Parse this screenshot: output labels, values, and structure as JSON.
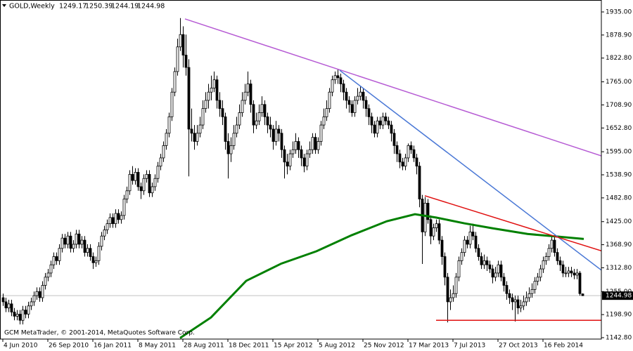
{
  "chart_data": {
    "type": "candlestick",
    "title": "GOLD,Weekly",
    "footer": "GCM MetaTrader, © 2001-2014, MetaQuotes Software Corp.",
    "bull_color": "#ffffff",
    "bear_color": "#000000",
    "outline_color": "#000000",
    "xlim": [
      -1,
      212.75
    ],
    "xticks": [
      {
        "value": 0,
        "label": "4 Jun 2010"
      },
      {
        "value": 16,
        "label": "26 Sep 2010"
      },
      {
        "value": 32,
        "label": "16 Jan 2011"
      },
      {
        "value": 48,
        "label": "8 May 2011"
      },
      {
        "value": 64,
        "label": "28 Aug 2011"
      },
      {
        "value": 80,
        "label": "18 Dec 2011"
      },
      {
        "value": 96,
        "label": "15 Apr 2012"
      },
      {
        "value": 112,
        "label": "5 Aug 2012"
      },
      {
        "value": 128,
        "label": "25 Nov 2012"
      },
      {
        "value": 144,
        "label": "17 Mar 2013"
      },
      {
        "value": 160,
        "label": "7 Jul 2013"
      },
      {
        "value": 176,
        "label": "27 Oct 2013"
      },
      {
        "value": 192,
        "label": "16 Feb 2014"
      }
    ],
    "ylim": [
      1139.4,
      1955.5
    ],
    "yticks": [
      {
        "value": 1935,
        "label": "1935.00"
      },
      {
        "value": 1878.9,
        "label": "1878.90"
      },
      {
        "value": 1822.8,
        "label": "1822.80"
      },
      {
        "value": 1765,
        "label": "1765.00"
      },
      {
        "value": 1708.9,
        "label": "1708.90"
      },
      {
        "value": 1652.8,
        "label": "1652.80"
      },
      {
        "value": 1595,
        "label": "1595.00"
      },
      {
        "value": 1538.9,
        "label": "1538.90"
      },
      {
        "value": 1482.8,
        "label": "1482.80"
      },
      {
        "value": 1425,
        "label": "1425.00"
      },
      {
        "value": 1368.9,
        "label": "1368.90"
      },
      {
        "value": 1312.8,
        "label": "1312.80"
      },
      {
        "value": 1255,
        "label": "1255.00"
      },
      {
        "value": 1198.9,
        "label": "1198.90"
      },
      {
        "value": 1142.8,
        "label": "1142.80"
      }
    ],
    "candles": [
      [
        1240,
        1250,
        1220,
        1230
      ],
      [
        1230,
        1240,
        1205,
        1215
      ],
      [
        1215,
        1235,
        1205,
        1225
      ],
      [
        1225,
        1235,
        1195,
        1205
      ],
      [
        1205,
        1215,
        1185,
        1195
      ],
      [
        1195,
        1210,
        1185,
        1200
      ],
      [
        1200,
        1210,
        1175,
        1185
      ],
      [
        1185,
        1220,
        1175,
        1210
      ],
      [
        1210,
        1220,
        1190,
        1200
      ],
      [
        1200,
        1230,
        1190,
        1220
      ],
      [
        1220,
        1240,
        1210,
        1230
      ],
      [
        1230,
        1255,
        1220,
        1245
      ],
      [
        1245,
        1265,
        1235,
        1255
      ],
      [
        1255,
        1265,
        1230,
        1240
      ],
      [
        1240,
        1280,
        1230,
        1270
      ],
      [
        1270,
        1300,
        1260,
        1290
      ],
      [
        1290,
        1310,
        1280,
        1300
      ],
      [
        1300,
        1330,
        1290,
        1320
      ],
      [
        1320,
        1350,
        1310,
        1340
      ],
      [
        1340,
        1350,
        1320,
        1330
      ],
      [
        1330,
        1370,
        1320,
        1360
      ],
      [
        1360,
        1395,
        1350,
        1385
      ],
      [
        1385,
        1395,
        1360,
        1370
      ],
      [
        1370,
        1400,
        1360,
        1390
      ],
      [
        1390,
        1400,
        1350,
        1360
      ],
      [
        1360,
        1380,
        1350,
        1370
      ],
      [
        1370,
        1405,
        1360,
        1395
      ],
      [
        1395,
        1405,
        1360,
        1370
      ],
      [
        1370,
        1390,
        1360,
        1380
      ],
      [
        1380,
        1390,
        1340,
        1350
      ],
      [
        1350,
        1370,
        1340,
        1360
      ],
      [
        1360,
        1370,
        1330,
        1340
      ],
      [
        1340,
        1350,
        1310,
        1325
      ],
      [
        1325,
        1340,
        1315,
        1330
      ],
      [
        1330,
        1375,
        1320,
        1365
      ],
      [
        1365,
        1400,
        1355,
        1390
      ],
      [
        1390,
        1415,
        1380,
        1405
      ],
      [
        1405,
        1430,
        1395,
        1420
      ],
      [
        1420,
        1445,
        1410,
        1435
      ],
      [
        1435,
        1445,
        1410,
        1420
      ],
      [
        1420,
        1455,
        1410,
        1445
      ],
      [
        1445,
        1455,
        1420,
        1430
      ],
      [
        1430,
        1450,
        1420,
        1440
      ],
      [
        1440,
        1490,
        1430,
        1480
      ],
      [
        1480,
        1510,
        1470,
        1500
      ],
      [
        1500,
        1550,
        1490,
        1540
      ],
      [
        1540,
        1560,
        1515,
        1525
      ],
      [
        1525,
        1555,
        1515,
        1545
      ],
      [
        1545,
        1555,
        1500,
        1510
      ],
      [
        1510,
        1520,
        1480,
        1500
      ],
      [
        1500,
        1540,
        1490,
        1530
      ],
      [
        1530,
        1550,
        1520,
        1540
      ],
      [
        1540,
        1550,
        1485,
        1495
      ],
      [
        1495,
        1520,
        1485,
        1510
      ],
      [
        1510,
        1540,
        1500,
        1530
      ],
      [
        1530,
        1570,
        1520,
        1560
      ],
      [
        1560,
        1590,
        1550,
        1580
      ],
      [
        1580,
        1620,
        1570,
        1610
      ],
      [
        1610,
        1650,
        1600,
        1640
      ],
      [
        1640,
        1690,
        1630,
        1680
      ],
      [
        1680,
        1750,
        1670,
        1740
      ],
      [
        1740,
        1800,
        1730,
        1790
      ],
      [
        1790,
        1870,
        1780,
        1850
      ],
      [
        1850,
        1920,
        1840,
        1880
      ],
      [
        1880,
        1900,
        1800,
        1830
      ],
      [
        1830,
        1880,
        1780,
        1800
      ],
      [
        1800,
        1820,
        1535,
        1650
      ],
      [
        1650,
        1700,
        1620,
        1640
      ],
      [
        1640,
        1660,
        1600,
        1620
      ],
      [
        1620,
        1660,
        1610,
        1640
      ],
      [
        1640,
        1680,
        1630,
        1660
      ],
      [
        1660,
        1720,
        1650,
        1700
      ],
      [
        1700,
        1740,
        1690,
        1720
      ],
      [
        1720,
        1760,
        1700,
        1740
      ],
      [
        1740,
        1780,
        1720,
        1750
      ],
      [
        1750,
        1790,
        1740,
        1770
      ],
      [
        1770,
        1780,
        1700,
        1720
      ],
      [
        1720,
        1740,
        1680,
        1700
      ],
      [
        1700,
        1720,
        1660,
        1680
      ],
      [
        1680,
        1690,
        1600,
        1620
      ],
      [
        1620,
        1640,
        1530,
        1590
      ],
      [
        1590,
        1630,
        1570,
        1610
      ],
      [
        1610,
        1660,
        1600,
        1640
      ],
      [
        1640,
        1680,
        1630,
        1660
      ],
      [
        1660,
        1710,
        1650,
        1690
      ],
      [
        1690,
        1740,
        1680,
        1720
      ],
      [
        1720,
        1760,
        1710,
        1740
      ],
      [
        1740,
        1790,
        1730,
        1760
      ],
      [
        1760,
        1770,
        1690,
        1710
      ],
      [
        1710,
        1720,
        1640,
        1660
      ],
      [
        1660,
        1690,
        1650,
        1670
      ],
      [
        1670,
        1710,
        1660,
        1690
      ],
      [
        1690,
        1730,
        1680,
        1710
      ],
      [
        1710,
        1720,
        1660,
        1680
      ],
      [
        1680,
        1690,
        1640,
        1660
      ],
      [
        1660,
        1680,
        1630,
        1650
      ],
      [
        1650,
        1660,
        1600,
        1620
      ],
      [
        1620,
        1670,
        1610,
        1650
      ],
      [
        1650,
        1660,
        1620,
        1640
      ],
      [
        1640,
        1650,
        1580,
        1600
      ],
      [
        1600,
        1610,
        1530,
        1570
      ],
      [
        1570,
        1590,
        1540,
        1560
      ],
      [
        1560,
        1600,
        1550,
        1590
      ],
      [
        1590,
        1620,
        1580,
        1600
      ],
      [
        1600,
        1640,
        1590,
        1620
      ],
      [
        1620,
        1630,
        1580,
        1600
      ],
      [
        1600,
        1610,
        1560,
        1580
      ],
      [
        1580,
        1590,
        1545,
        1560
      ],
      [
        1560,
        1600,
        1550,
        1590
      ],
      [
        1590,
        1620,
        1580,
        1600
      ],
      [
        1600,
        1640,
        1590,
        1630
      ],
      [
        1630,
        1640,
        1590,
        1600
      ],
      [
        1600,
        1630,
        1590,
        1620
      ],
      [
        1620,
        1670,
        1610,
        1660
      ],
      [
        1660,
        1700,
        1650,
        1680
      ],
      [
        1680,
        1720,
        1670,
        1700
      ],
      [
        1700,
        1750,
        1690,
        1740
      ],
      [
        1740,
        1780,
        1730,
        1770
      ],
      [
        1770,
        1790,
        1760,
        1780
      ],
      [
        1780,
        1795,
        1760,
        1775
      ],
      [
        1775,
        1785,
        1740,
        1760
      ],
      [
        1760,
        1770,
        1720,
        1740
      ],
      [
        1740,
        1750,
        1700,
        1720
      ],
      [
        1720,
        1730,
        1690,
        1710
      ],
      [
        1710,
        1720,
        1680,
        1690
      ],
      [
        1690,
        1730,
        1680,
        1720
      ],
      [
        1720,
        1750,
        1710,
        1730
      ],
      [
        1730,
        1755,
        1720,
        1740
      ],
      [
        1740,
        1750,
        1700,
        1720
      ],
      [
        1720,
        1730,
        1680,
        1700
      ],
      [
        1700,
        1710,
        1660,
        1680
      ],
      [
        1680,
        1690,
        1640,
        1660
      ],
      [
        1660,
        1670,
        1630,
        1640
      ],
      [
        1640,
        1680,
        1630,
        1670
      ],
      [
        1670,
        1680,
        1650,
        1660
      ],
      [
        1660,
        1690,
        1650,
        1680
      ],
      [
        1680,
        1690,
        1660,
        1670
      ],
      [
        1670,
        1680,
        1650,
        1660
      ],
      [
        1660,
        1670,
        1620,
        1640
      ],
      [
        1640,
        1650,
        1590,
        1610
      ],
      [
        1610,
        1620,
        1570,
        1590
      ],
      [
        1590,
        1600,
        1555,
        1570
      ],
      [
        1570,
        1580,
        1550,
        1560
      ],
      [
        1560,
        1590,
        1550,
        1580
      ],
      [
        1580,
        1615,
        1570,
        1610
      ],
      [
        1610,
        1620,
        1590,
        1600
      ],
      [
        1600,
        1610,
        1570,
        1580
      ],
      [
        1580,
        1590,
        1540,
        1560
      ],
      [
        1560,
        1570,
        1460,
        1480
      ],
      [
        1480,
        1490,
        1322,
        1400
      ],
      [
        1400,
        1485,
        1390,
        1470
      ],
      [
        1470,
        1480,
        1420,
        1430
      ],
      [
        1430,
        1440,
        1370,
        1390
      ],
      [
        1390,
        1420,
        1380,
        1410
      ],
      [
        1410,
        1430,
        1400,
        1420
      ],
      [
        1420,
        1430,
        1370,
        1380
      ],
      [
        1380,
        1390,
        1320,
        1340
      ],
      [
        1340,
        1350,
        1270,
        1290
      ],
      [
        1290,
        1300,
        1180,
        1230
      ],
      [
        1230,
        1260,
        1210,
        1240
      ],
      [
        1240,
        1270,
        1230,
        1250
      ],
      [
        1250,
        1300,
        1240,
        1290
      ],
      [
        1290,
        1340,
        1280,
        1330
      ],
      [
        1330,
        1360,
        1320,
        1350
      ],
      [
        1350,
        1390,
        1340,
        1380
      ],
      [
        1380,
        1390,
        1360,
        1370
      ],
      [
        1370,
        1415,
        1360,
        1400
      ],
      [
        1400,
        1420,
        1380,
        1390
      ],
      [
        1390,
        1400,
        1350,
        1360
      ],
      [
        1360,
        1370,
        1330,
        1340
      ],
      [
        1340,
        1350,
        1310,
        1320
      ],
      [
        1320,
        1345,
        1310,
        1330
      ],
      [
        1330,
        1340,
        1305,
        1320
      ],
      [
        1320,
        1330,
        1300,
        1310
      ],
      [
        1310,
        1320,
        1275,
        1290
      ],
      [
        1290,
        1315,
        1280,
        1300
      ],
      [
        1300,
        1330,
        1290,
        1320
      ],
      [
        1320,
        1330,
        1280,
        1290
      ],
      [
        1290,
        1300,
        1255,
        1270
      ],
      [
        1270,
        1280,
        1235,
        1250
      ],
      [
        1250,
        1260,
        1225,
        1240
      ],
      [
        1240,
        1250,
        1210,
        1230
      ],
      [
        1230,
        1245,
        1182,
        1235
      ],
      [
        1235,
        1245,
        1200,
        1215
      ],
      [
        1215,
        1235,
        1205,
        1220
      ],
      [
        1220,
        1245,
        1210,
        1230
      ],
      [
        1230,
        1255,
        1220,
        1240
      ],
      [
        1240,
        1265,
        1230,
        1250
      ],
      [
        1250,
        1275,
        1240,
        1260
      ],
      [
        1260,
        1290,
        1250,
        1280
      ],
      [
        1280,
        1300,
        1270,
        1290
      ],
      [
        1290,
        1320,
        1280,
        1310
      ],
      [
        1310,
        1340,
        1300,
        1330
      ],
      [
        1330,
        1350,
        1320,
        1340
      ],
      [
        1340,
        1370,
        1330,
        1360
      ],
      [
        1360,
        1392,
        1350,
        1380
      ],
      [
        1380,
        1390,
        1340,
        1350
      ],
      [
        1350,
        1360,
        1320,
        1330
      ],
      [
        1330,
        1340,
        1305,
        1320
      ],
      [
        1320,
        1330,
        1290,
        1300
      ],
      [
        1300,
        1315,
        1290,
        1300
      ],
      [
        1300,
        1315,
        1290,
        1305
      ],
      [
        1305,
        1315,
        1290,
        1300
      ],
      [
        1300,
        1310,
        1285,
        1295
      ],
      [
        1295,
        1310,
        1285,
        1300
      ],
      [
        1300,
        1305,
        1245,
        1250
      ],
      [
        1249.17,
        1250.39,
        1244.19,
        1244.98
      ]
    ],
    "moving_average": {
      "color": "#008000",
      "x": [
        63,
        74,
        86.5,
        99,
        111.5,
        124,
        136.5,
        146.5,
        154,
        164,
        174,
        186.5,
        196.5,
        206.5
      ],
      "values": [
        1142,
        1192,
        1281,
        1323,
        1353,
        1392,
        1426,
        1443,
        1435,
        1421,
        1409,
        1395,
        1389,
        1383
      ]
    },
    "trendlines": [
      {
        "color": "#b65bd4",
        "x": [
          64.75,
          212.75
        ],
        "values": [
          1918,
          1585
        ]
      },
      {
        "color": "#4a78d6",
        "x": [
          119.75,
          212.75
        ],
        "values": [
          1793,
          1307
        ]
      },
      {
        "color": "#e01010",
        "x": [
          150,
          212.75
        ],
        "values": [
          1488,
          1354
        ]
      },
      {
        "color": "#e01010",
        "x": [
          154,
          212.75
        ],
        "values": [
          1185,
          1185
        ]
      }
    ],
    "price_line_color": "#c0c0c0"
  }
}
